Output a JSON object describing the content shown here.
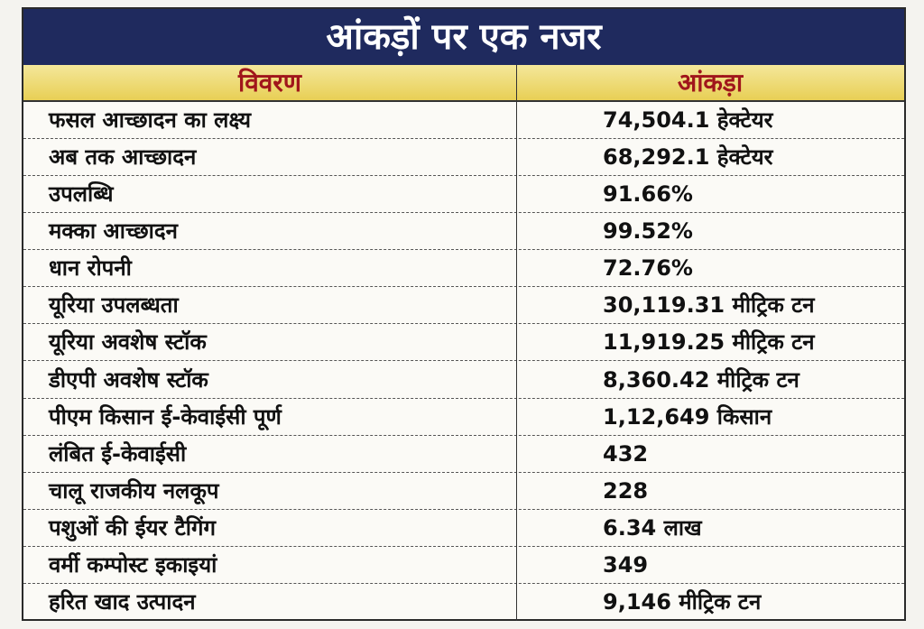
{
  "header": {
    "title": "आंकड़ों पर एक नजर"
  },
  "table": {
    "columns": [
      "विवरण",
      "आंकड़ा"
    ],
    "rows": [
      [
        "फसल आच्छादन का लक्ष्य",
        "74,504.1 हेक्टेयर"
      ],
      [
        "अब तक आच्छादन",
        "68,292.1 हेक्टेयर"
      ],
      [
        "उपलब्धि",
        "91.66%"
      ],
      [
        "मक्का आच्छादन",
        "99.52%"
      ],
      [
        "धान रोपनी",
        "72.76%"
      ],
      [
        "यूरिया उपलब्धता",
        "30,119.31 मीट्रिक टन"
      ],
      [
        "यूरिया अवशेष स्टॉक",
        "11,919.25 मीट्रिक टन"
      ],
      [
        "डीएपी अवशेष स्टॉक",
        "8,360.42 मीट्रिक टन"
      ],
      [
        "पीएम किसान ई-केवाईसी पूर्ण",
        "1,12,649 किसान"
      ],
      [
        "लंबित ई-केवाईसी",
        "432"
      ],
      [
        "चालू राजकीय नलकूप",
        "228"
      ],
      [
        "पशुओं की ईयर टैगिंग",
        "6.34 लाख"
      ],
      [
        "वर्मी कम्पोस्ट इकाइयां",
        "349"
      ],
      [
        "हरित खाद उत्पादन",
        "9,146 मीट्रिक टन"
      ]
    ]
  }
}
